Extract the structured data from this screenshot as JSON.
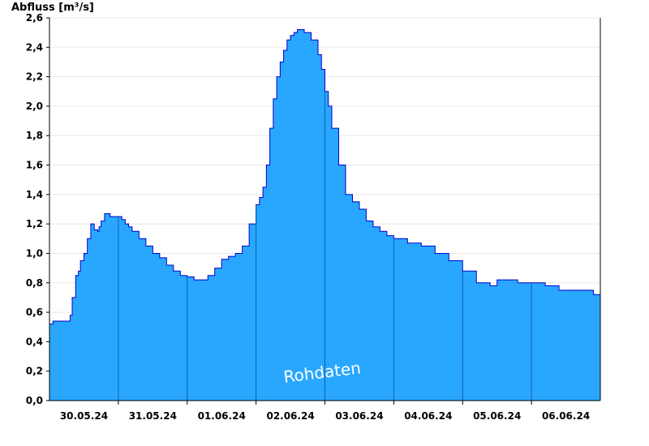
{
  "chart_data": {
    "type": "area",
    "ylabel": "Abfluss [m³/s]",
    "xlabel": "",
    "title": "",
    "watermark": "Rohdaten",
    "ylim": [
      0,
      2.6
    ],
    "yticks": [
      "0,0",
      "0,2",
      "0,4",
      "0,6",
      "0,8",
      "1,0",
      "1,2",
      "1,4",
      "1,6",
      "1,8",
      "2,0",
      "2,2",
      "2,4",
      "2,6"
    ],
    "xlim_days": [
      0,
      8
    ],
    "xticks": [
      {
        "label": "30.05.24",
        "day": 0.5
      },
      {
        "label": "31.05.24",
        "day": 1.5
      },
      {
        "label": "01.06.24",
        "day": 2.5
      },
      {
        "label": "02.06.24",
        "day": 3.5
      },
      {
        "label": "03.06.24",
        "day": 4.5
      },
      {
        "label": "04.06.24",
        "day": 5.5
      },
      {
        "label": "05.06.24",
        "day": 6.5
      },
      {
        "label": "06.06.24",
        "day": 7.5
      }
    ],
    "x_start_date": "30.05.24",
    "colors": {
      "fill": "#29a7ff",
      "line": "#0000cc",
      "grid": "#e8e8e8"
    },
    "series": [
      {
        "name": "",
        "x_days": [
          0,
          0.05,
          0.25,
          0.3,
          0.33,
          0.38,
          0.42,
          0.45,
          0.5,
          0.55,
          0.6,
          0.65,
          0.7,
          0.72,
          0.75,
          0.8,
          0.83,
          0.88,
          0.9,
          0.95,
          1.0,
          1.05,
          1.1,
          1.15,
          1.2,
          1.3,
          1.4,
          1.5,
          1.6,
          1.7,
          1.8,
          1.9,
          2.0,
          2.1,
          2.2,
          2.3,
          2.4,
          2.5,
          2.6,
          2.7,
          2.8,
          2.9,
          3.0,
          3.05,
          3.1,
          3.15,
          3.2,
          3.25,
          3.3,
          3.35,
          3.4,
          3.45,
          3.5,
          3.55,
          3.6,
          3.7,
          3.8,
          3.9,
          3.95,
          4.0,
          4.05,
          4.1,
          4.2,
          4.3,
          4.4,
          4.5,
          4.6,
          4.7,
          4.8,
          4.9,
          5.0,
          5.2,
          5.4,
          5.6,
          5.8,
          6.0,
          6.2,
          6.4,
          6.5,
          6.6,
          6.7,
          6.8,
          6.9,
          7.0,
          7.2,
          7.4,
          7.6,
          7.8,
          7.9,
          8.0
        ],
        "values": [
          0.52,
          0.54,
          0.54,
          0.58,
          0.7,
          0.85,
          0.88,
          0.95,
          1.0,
          1.1,
          1.2,
          1.16,
          1.15,
          1.18,
          1.22,
          1.27,
          1.27,
          1.25,
          1.25,
          1.25,
          1.25,
          1.23,
          1.2,
          1.18,
          1.15,
          1.1,
          1.05,
          1.0,
          0.97,
          0.92,
          0.88,
          0.85,
          0.84,
          0.82,
          0.82,
          0.85,
          0.9,
          0.96,
          0.98,
          1.0,
          1.05,
          1.2,
          1.33,
          1.38,
          1.45,
          1.6,
          1.85,
          2.05,
          2.2,
          2.3,
          2.38,
          2.45,
          2.48,
          2.5,
          2.52,
          2.5,
          2.45,
          2.35,
          2.25,
          2.1,
          2.0,
          1.85,
          1.6,
          1.4,
          1.35,
          1.3,
          1.22,
          1.18,
          1.15,
          1.12,
          1.1,
          1.07,
          1.05,
          1.0,
          0.95,
          0.88,
          0.8,
          0.78,
          0.82,
          0.82,
          0.82,
          0.8,
          0.8,
          0.8,
          0.78,
          0.75,
          0.75,
          0.75,
          0.72,
          0.72
        ]
      }
    ],
    "day_separators": [
      1,
      2,
      3,
      4,
      5,
      6,
      7
    ],
    "grid": true,
    "legend": "none"
  }
}
